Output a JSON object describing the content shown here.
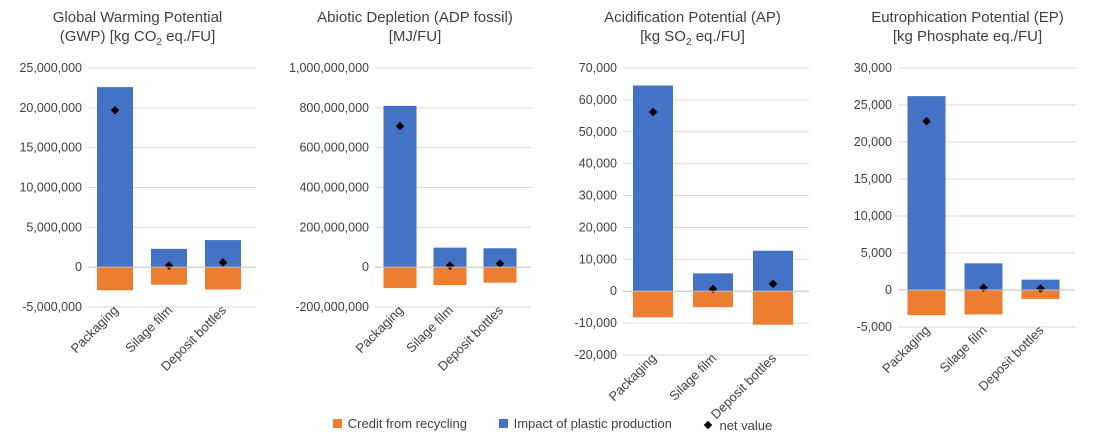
{
  "colors": {
    "credit": "#ED7D31",
    "impact": "#4472C4",
    "net": "#000000",
    "grid": "#D9D9D9",
    "axis": "#BFBFBF"
  },
  "legend": {
    "credit": "Credit from recycling",
    "impact": "Impact of plastic production",
    "net": "net value"
  },
  "chart_data": [
    {
      "type": "bar",
      "title_line1": "Global Warming Potential",
      "title_line2_pre": "(GWP) [kg CO",
      "title_sub": "2",
      "title_line2_post": " eq./FU]",
      "categories": [
        "Packaging",
        "Silage film",
        "Deposit bottles"
      ],
      "ylim": [
        -5000000,
        25000000
      ],
      "yticks": [
        -5000000,
        0,
        5000000,
        10000000,
        15000000,
        20000000,
        25000000
      ],
      "ytick_labels": [
        "-5,000,000",
        "0",
        "5,000,000",
        "10,000,000",
        "15,000,000",
        "20,000,000",
        "25,000,000"
      ],
      "series": [
        {
          "name": "Credit from recycling",
          "values": [
            -2900000,
            -2200000,
            -2800000
          ]
        },
        {
          "name": "Impact of plastic production",
          "values": [
            22600000,
            2300000,
            3400000
          ]
        },
        {
          "name": "net value",
          "values": [
            19700000,
            200000,
            600000
          ]
        }
      ]
    },
    {
      "type": "bar",
      "title_line1": "Abiotic Depletion (ADP fossil)",
      "title_line2_pre": "[MJ/FU]",
      "title_sub": "",
      "title_line2_post": "",
      "categories": [
        "Packaging",
        "Silage film",
        "Deposit bottles"
      ],
      "ylim": [
        -200000000,
        1000000000
      ],
      "yticks": [
        -200000000,
        0,
        200000000,
        400000000,
        600000000,
        800000000,
        1000000000
      ],
      "ytick_labels": [
        "-200,000,000",
        "0",
        "200,000,000",
        "400,000,000",
        "600,000,000",
        "800,000,000",
        "1,000,000,000"
      ],
      "series": [
        {
          "name": "Credit from recycling",
          "values": [
            -105000000,
            -90000000,
            -78000000
          ]
        },
        {
          "name": "Impact of plastic production",
          "values": [
            810000000,
            98000000,
            95000000
          ]
        },
        {
          "name": "net value",
          "values": [
            708000000,
            8000000,
            18000000
          ]
        }
      ]
    },
    {
      "type": "bar",
      "title_line1": "Acidification Potential (AP)",
      "title_line2_pre": "[kg SO",
      "title_sub": "2",
      "title_line2_post": " eq./FU]",
      "categories": [
        "Packaging",
        "Silage film",
        "Deposit bottles"
      ],
      "ylim": [
        -20000,
        70000
      ],
      "yticks": [
        -20000,
        -10000,
        0,
        10000,
        20000,
        30000,
        40000,
        50000,
        60000,
        70000
      ],
      "ytick_labels": [
        "-20,000",
        "-10,000",
        "0",
        "10,000",
        "20,000",
        "30,000",
        "40,000",
        "50,000",
        "60,000",
        "70,000"
      ],
      "series": [
        {
          "name": "Credit from recycling",
          "values": [
            -8200,
            -5000,
            -10500
          ]
        },
        {
          "name": "Impact of plastic production",
          "values": [
            64500,
            5600,
            12700
          ]
        },
        {
          "name": "net value",
          "values": [
            56200,
            700,
            2300
          ]
        }
      ]
    },
    {
      "type": "bar",
      "title_line1": "Eutrophication Potential (EP)",
      "title_line2_pre": "[kg Phosphate eq./FU]",
      "title_sub": "",
      "title_line2_post": "",
      "categories": [
        "Packaging",
        "Silage film",
        "Deposit bottles"
      ],
      "ylim": [
        -5000,
        30000
      ],
      "yticks": [
        -5000,
        0,
        5000,
        10000,
        15000,
        20000,
        25000,
        30000
      ],
      "ytick_labels": [
        "-5,000",
        "0",
        "5,000",
        "10,000",
        "15,000",
        "20,000",
        "25,000",
        "30,000"
      ],
      "series": [
        {
          "name": "Credit from recycling",
          "values": [
            -3400,
            -3300,
            -1200
          ]
        },
        {
          "name": "Impact of plastic production",
          "values": [
            26200,
            3600,
            1400
          ]
        },
        {
          "name": "net value",
          "values": [
            22800,
            300,
            200
          ]
        }
      ]
    }
  ]
}
